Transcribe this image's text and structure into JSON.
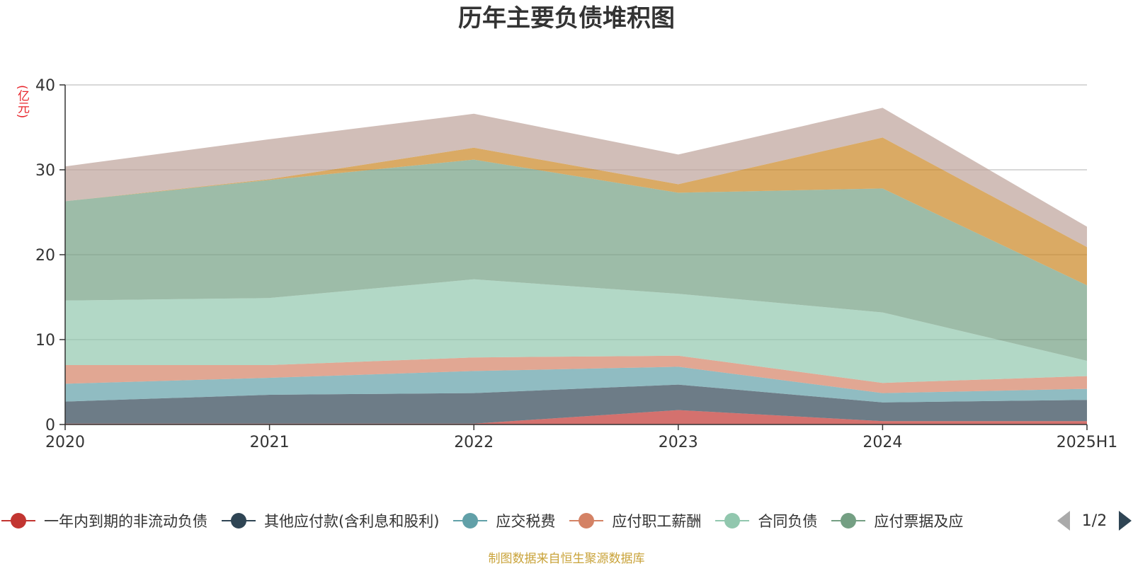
{
  "chart_data": {
    "type": "area",
    "stacked": true,
    "title": "历年主要负债堆积图",
    "unit_label": "(亿元)",
    "categories": [
      "2020",
      "2021",
      "2022",
      "2023",
      "2024",
      "2025H1"
    ],
    "ylim": [
      0,
      40
    ],
    "yticks": [
      0,
      10,
      20,
      30,
      40
    ],
    "grid": true,
    "series": [
      {
        "name": "一年内到期的非流动负债",
        "color": "#c23531",
        "values": [
          0.1,
          0.1,
          0.1,
          1.7,
          0.4,
          0.4
        ]
      },
      {
        "name": "其他应付款(含利息和股利)",
        "color": "#2f4554",
        "values": [
          2.6,
          3.4,
          3.6,
          3.0,
          2.2,
          2.5
        ]
      },
      {
        "name": "应交税费",
        "color": "#61a0a8",
        "values": [
          2.1,
          2.0,
          2.6,
          2.1,
          1.1,
          1.3
        ]
      },
      {
        "name": "应付职工薪酬",
        "color": "#d48265",
        "values": [
          2.2,
          1.5,
          1.6,
          1.3,
          1.2,
          1.5
        ]
      },
      {
        "name": "合同负债",
        "color": "#91c7ae",
        "values": [
          7.6,
          7.9,
          9.2,
          7.3,
          8.3,
          1.8
        ]
      },
      {
        "name": "应付票据及应付账款",
        "color": "#749f83",
        "values": [
          11.7,
          13.9,
          14.1,
          11.9,
          14.6,
          8.9
        ]
      },
      {
        "name": "",
        "color": "#ca8622",
        "values": [
          0.0,
          0.1,
          1.4,
          1.0,
          6.0,
          4.5
        ]
      },
      {
        "name": "",
        "color": "#bda29a",
        "values": [
          4.1,
          4.7,
          4.0,
          3.5,
          3.5,
          2.4
        ]
      }
    ],
    "legend": {
      "placement": "bottom",
      "items": [
        "一年内到期的非流动负债",
        "其他应付款(含利息和股利)",
        "应交税费",
        "应付职工薪酬",
        "合同负债",
        "应付票据及应"
      ],
      "page": "1/2"
    }
  },
  "source": "制图数据来自恒生聚源数据库"
}
